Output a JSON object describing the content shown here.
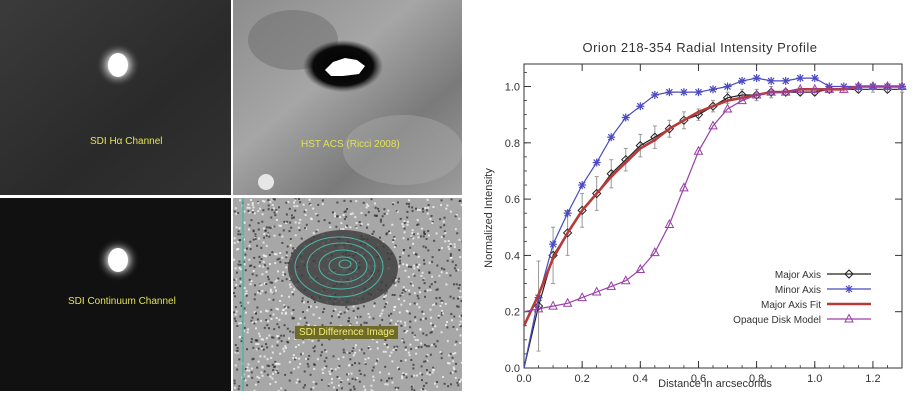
{
  "panels": [
    {
      "label": "SDI Hα Channel"
    },
    {
      "label": "HST ACS (Ricci 2008)"
    },
    {
      "label": "SDI Continuum Channel"
    },
    {
      "label": "SDI Difference Image"
    }
  ],
  "chart_data": {
    "type": "line",
    "title": "Orion 218-354 Radial Intensity Profile",
    "xlabel": "Distance in arcseconds",
    "ylabel": "Normalized Intensity",
    "xlim": [
      0.0,
      1.3
    ],
    "ylim": [
      0.0,
      1.08
    ],
    "xticks": [
      "0.0",
      "0.2",
      "0.4",
      "0.6",
      "0.8",
      "1.0",
      "1.2"
    ],
    "yticks": [
      "0.0",
      "0.2",
      "0.4",
      "0.6",
      "0.8",
      "1.0"
    ],
    "legend_position": "bottom-right",
    "series": [
      {
        "name": "Major Axis",
        "color": "#222222",
        "marker": "diamond",
        "x": [
          0.0,
          0.05,
          0.1,
          0.15,
          0.2,
          0.25,
          0.3,
          0.35,
          0.4,
          0.45,
          0.5,
          0.55,
          0.6,
          0.65,
          0.7,
          0.75,
          0.8,
          0.85,
          0.9,
          0.95,
          1.0,
          1.05,
          1.1,
          1.15,
          1.2,
          1.25,
          1.3
        ],
        "y": [
          0.0,
          0.22,
          0.4,
          0.48,
          0.56,
          0.62,
          0.69,
          0.74,
          0.79,
          0.82,
          0.85,
          0.88,
          0.9,
          0.93,
          0.96,
          0.97,
          0.97,
          0.98,
          0.98,
          0.98,
          0.98,
          0.99,
          0.99,
          0.99,
          0.99,
          0.99,
          0.99
        ],
        "yerr": [
          0.0,
          0.16,
          0.1,
          0.08,
          0.06,
          0.06,
          0.05,
          0.04,
          0.04,
          0.04,
          0.03,
          0.03,
          0.02,
          0.02,
          0.02,
          0.02,
          0.02,
          0.02,
          0.01,
          0.01,
          0.01,
          0.01,
          0.01,
          0.01,
          0.01,
          0.01,
          0.01
        ]
      },
      {
        "name": "Minor Axis",
        "color": "#4a4ac0",
        "marker": "asterisk",
        "x": [
          0.0,
          0.05,
          0.1,
          0.15,
          0.2,
          0.25,
          0.3,
          0.35,
          0.4,
          0.45,
          0.5,
          0.55,
          0.6,
          0.65,
          0.7,
          0.75,
          0.8,
          0.85,
          0.9,
          0.95,
          1.0,
          1.05,
          1.1,
          1.15,
          1.2,
          1.25,
          1.3
        ],
        "y": [
          0.0,
          0.25,
          0.44,
          0.55,
          0.65,
          0.73,
          0.82,
          0.89,
          0.93,
          0.97,
          0.98,
          0.98,
          0.98,
          0.99,
          1.0,
          1.02,
          1.03,
          1.02,
          1.02,
          1.03,
          1.03,
          1.0,
          1.0,
          1.0,
          1.0,
          1.0,
          1.0
        ]
      },
      {
        "name": "Major Axis Fit",
        "color": "#b53a3a",
        "marker": "none",
        "x": [
          0.0,
          0.05,
          0.1,
          0.15,
          0.2,
          0.25,
          0.3,
          0.35,
          0.4,
          0.45,
          0.5,
          0.55,
          0.6,
          0.65,
          0.7,
          0.75,
          0.8,
          0.85,
          0.9,
          0.95,
          1.0,
          1.05,
          1.1,
          1.15,
          1.2,
          1.25,
          1.3
        ],
        "y": [
          0.15,
          0.26,
          0.39,
          0.48,
          0.56,
          0.62,
          0.68,
          0.73,
          0.78,
          0.81,
          0.85,
          0.88,
          0.91,
          0.93,
          0.95,
          0.96,
          0.97,
          0.98,
          0.98,
          0.99,
          0.99,
          0.99,
          0.99,
          1.0,
          1.0,
          1.0,
          1.0
        ]
      },
      {
        "name": "Opaque Disk Model",
        "color": "#9a3fa6",
        "marker": "triangle",
        "x": [
          0.0,
          0.05,
          0.1,
          0.15,
          0.2,
          0.25,
          0.3,
          0.35,
          0.4,
          0.45,
          0.5,
          0.55,
          0.6,
          0.65,
          0.7,
          0.75,
          0.8,
          0.85,
          0.9,
          0.95,
          1.0,
          1.05,
          1.1,
          1.15,
          1.2,
          1.25,
          1.3
        ],
        "y": [
          0.2,
          0.21,
          0.22,
          0.23,
          0.25,
          0.27,
          0.29,
          0.31,
          0.35,
          0.41,
          0.51,
          0.64,
          0.77,
          0.86,
          0.92,
          0.95,
          0.97,
          0.98,
          0.98,
          0.99,
          0.99,
          0.99,
          0.99,
          1.0,
          1.0,
          1.0,
          1.0
        ]
      }
    ]
  }
}
